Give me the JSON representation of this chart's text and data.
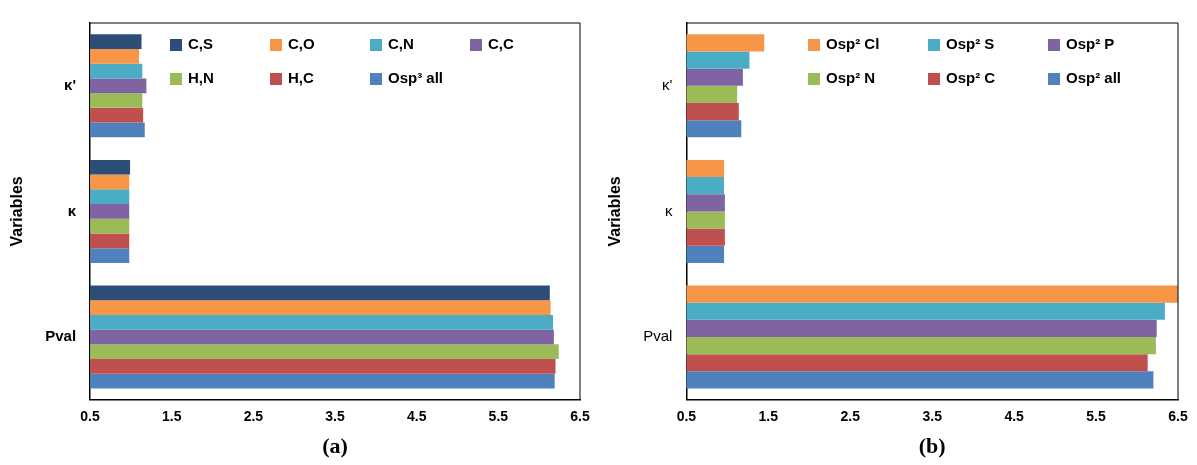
{
  "chart_data": [
    {
      "type": "bar",
      "orientation": "horizontal",
      "xlabel": "(a)",
      "ylabel": "Variables",
      "categories": [
        "κ'",
        "κ",
        "Pval"
      ],
      "series": [
        {
          "name": "C,S",
          "color": "#2c4d75",
          "values": [
            1.13,
            0.99,
            6.13
          ]
        },
        {
          "name": "C,O",
          "color": "#f79646",
          "values": [
            1.1,
            0.98,
            6.14
          ]
        },
        {
          "name": "C,N",
          "color": "#4bacc6",
          "values": [
            1.14,
            0.98,
            6.17
          ]
        },
        {
          "name": "C,C",
          "color": "#8064a2",
          "values": [
            1.19,
            0.98,
            6.18
          ]
        },
        {
          "name": "H,N",
          "color": "#9bbb59",
          "values": [
            1.14,
            0.98,
            6.24
          ]
        },
        {
          "name": "H,C",
          "color": "#c0504d",
          "values": [
            1.15,
            0.98,
            6.2
          ]
        },
        {
          "name": "Osp³ all",
          "color": "#4f81bd",
          "values": [
            1.17,
            0.98,
            6.19
          ]
        }
      ],
      "xlim": [
        0.5,
        6.5
      ],
      "xticks": [
        0.5,
        1.5,
        2.5,
        3.5,
        4.5,
        5.5,
        6.5
      ],
      "grid": false,
      "legend": "top right"
    },
    {
      "type": "bar",
      "orientation": "horizontal",
      "xlabel": "(b)",
      "ylabel": "Variables",
      "categories": [
        "κ'",
        "κ",
        "Pval"
      ],
      "series": [
        {
          "name": "Osp² Cl",
          "color": "#f79646",
          "values": [
            1.45,
            0.96,
            6.5
          ]
        },
        {
          "name": "Osp² S",
          "color": "#4bacc6",
          "values": [
            1.27,
            0.96,
            6.34
          ]
        },
        {
          "name": "Osp² P",
          "color": "#8064a2",
          "values": [
            1.19,
            0.97,
            6.24
          ]
        },
        {
          "name": "Osp² N",
          "color": "#9bbb59",
          "values": [
            1.12,
            0.97,
            6.23
          ]
        },
        {
          "name": "Osp² C",
          "color": "#c0504d",
          "values": [
            1.14,
            0.97,
            6.13
          ]
        },
        {
          "name": "Osp² all",
          "color": "#4f81bd",
          "values": [
            1.17,
            0.96,
            6.2
          ]
        }
      ],
      "xlim": [
        0.5,
        6.5
      ],
      "xticks": [
        0.5,
        1.5,
        2.5,
        3.5,
        4.5,
        5.5,
        6.5
      ],
      "grid": false,
      "legend": "top right"
    }
  ]
}
